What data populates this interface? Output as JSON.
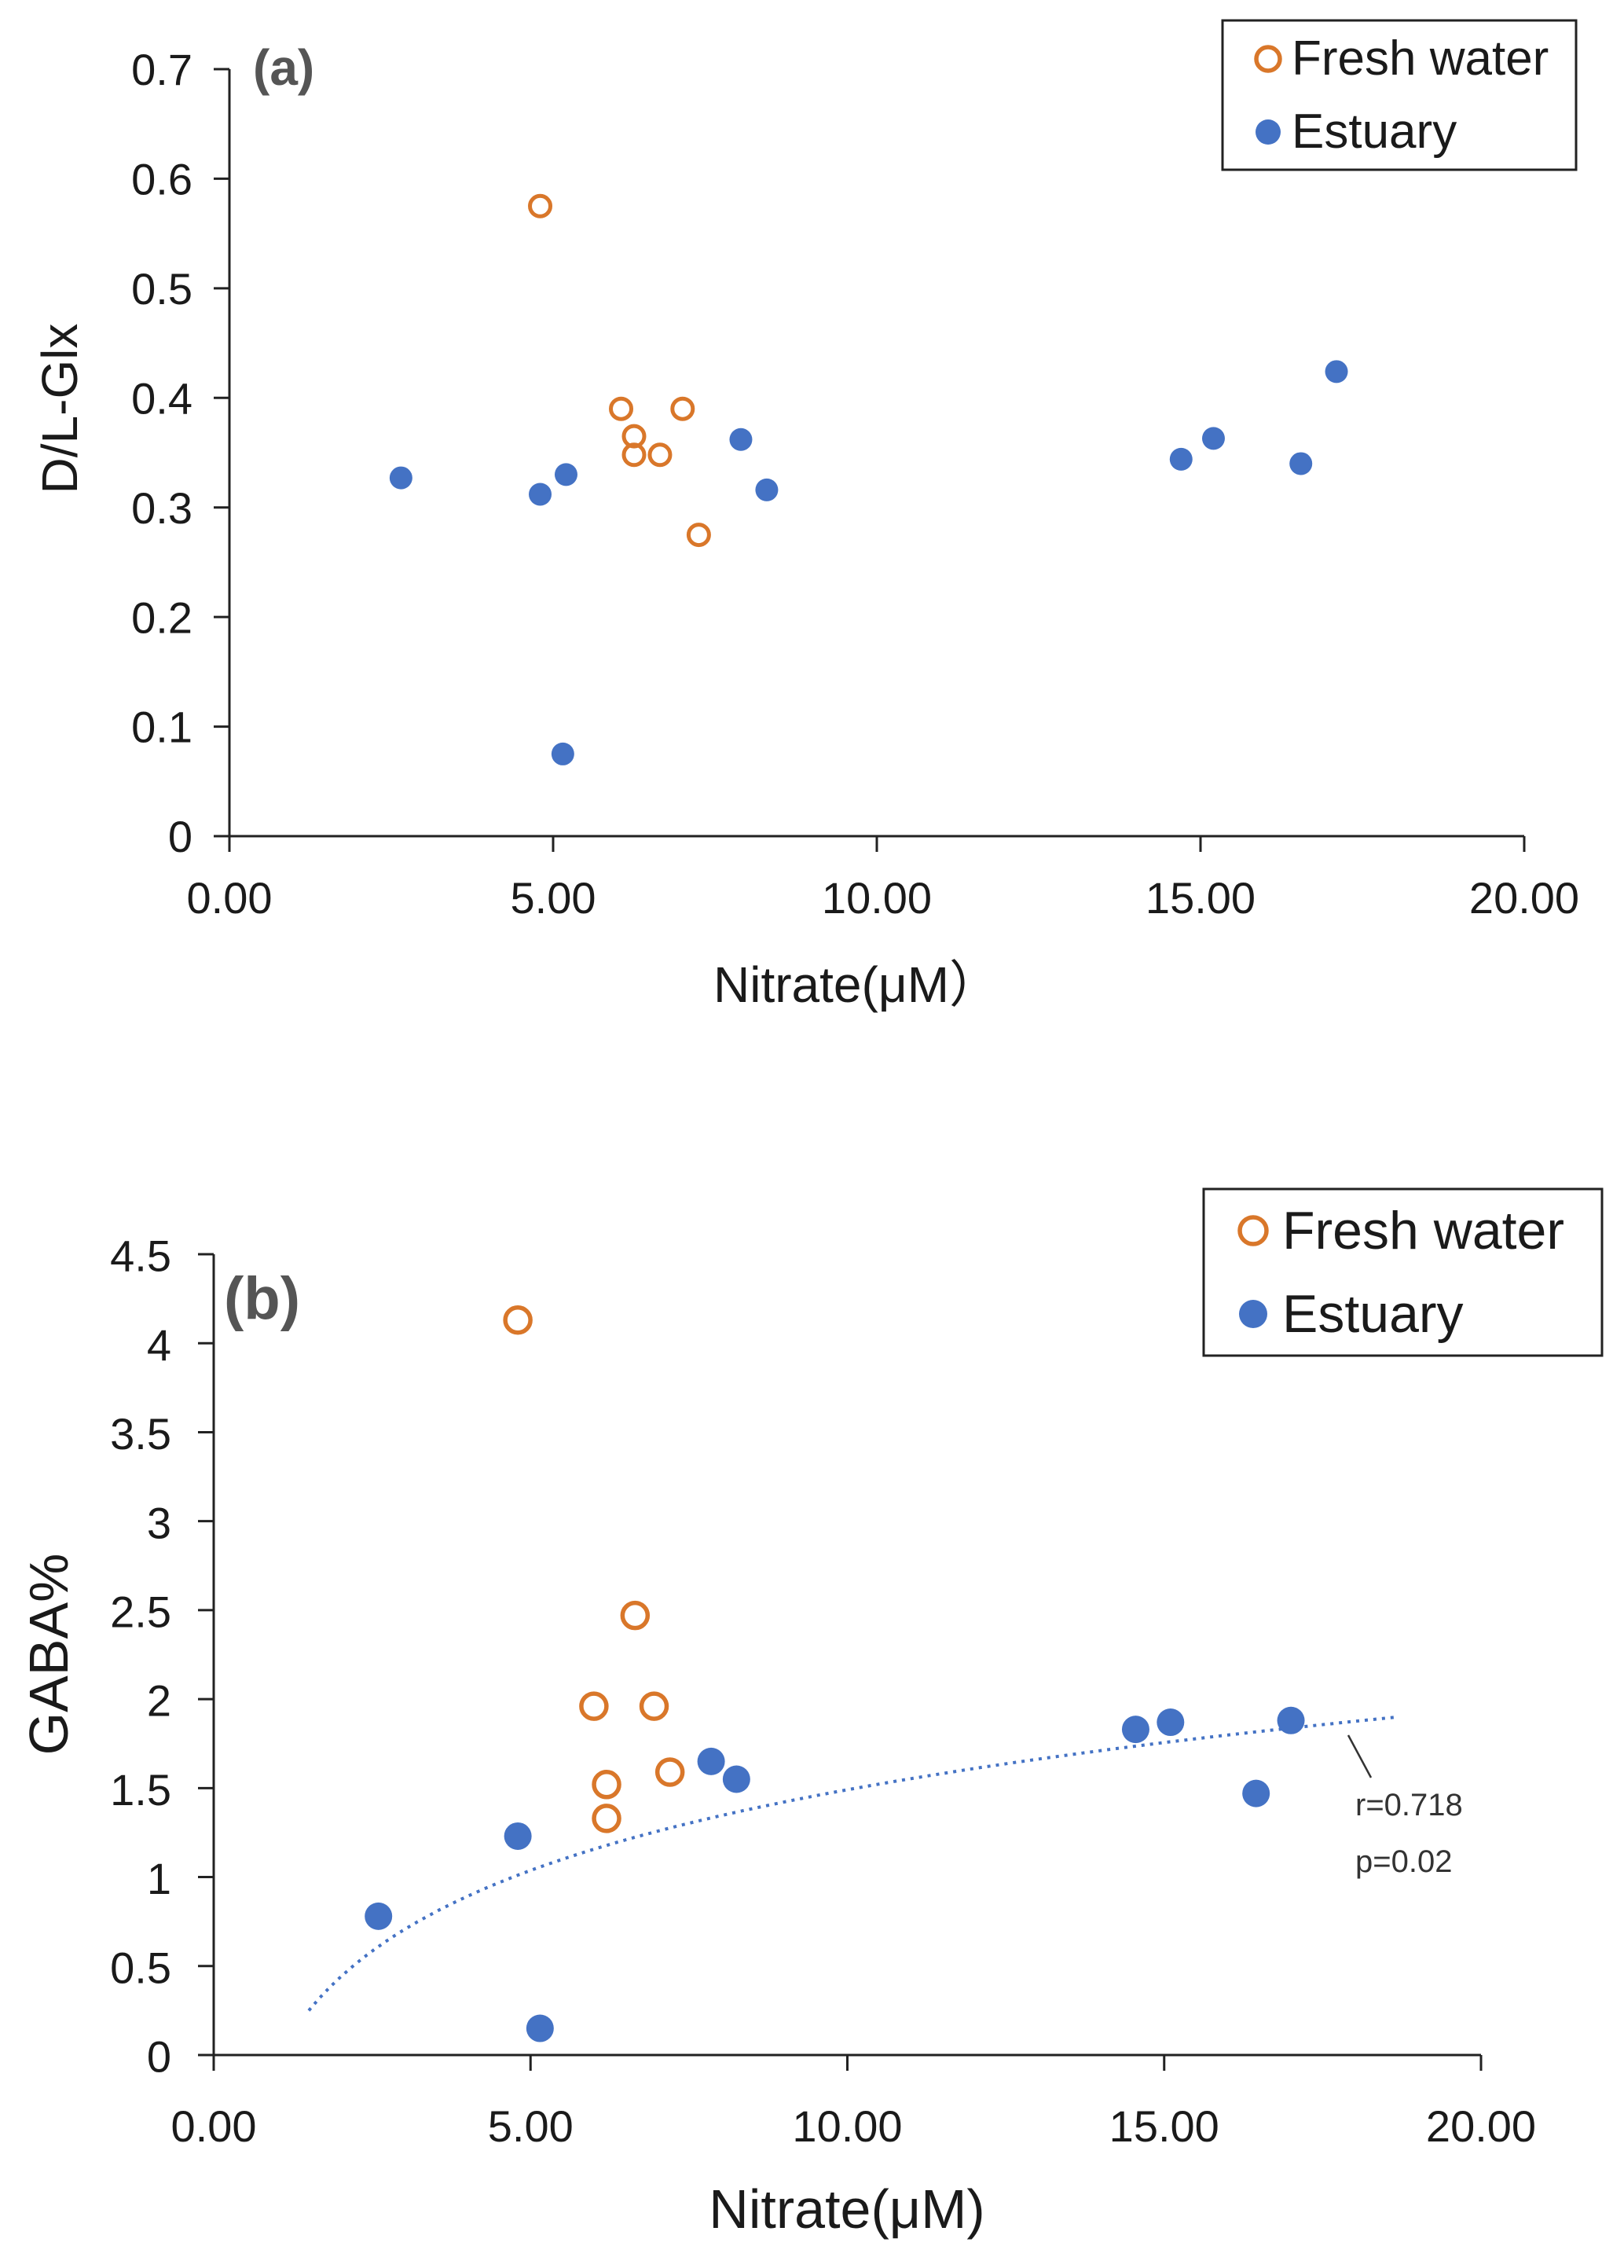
{
  "colors": {
    "fresh_water": "#D9772A",
    "estuary": "#4472C4",
    "axis": "#222222",
    "trendline": "#4472C4"
  },
  "chart_data": [
    {
      "type": "scatter",
      "panel_label": "(a)",
      "xlabel": "Nitrate(μM）",
      "ylabel": "D/L-Glx",
      "xlim": [
        0,
        20
      ],
      "ylim": [
        0,
        0.7
      ],
      "x_ticks": [
        0,
        5,
        10,
        15,
        20
      ],
      "x_tick_labels": [
        "0.00",
        "5.00",
        "10.00",
        "15.00",
        "20.00"
      ],
      "y_ticks": [
        0,
        0.1,
        0.2,
        0.3,
        0.4,
        0.5,
        0.6,
        0.7
      ],
      "y_tick_labels": [
        "0",
        "0.1",
        "0.2",
        "0.3",
        "0.4",
        "0.5",
        "0.6",
        "0.7"
      ],
      "legend_position": "top-right",
      "series": [
        {
          "name": "Fresh water",
          "marker": "open-circle",
          "x": [
            4.8,
            6.05,
            6.25,
            6.25,
            6.65,
            7.0,
            7.25
          ],
          "y": [
            0.575,
            0.39,
            0.365,
            0.348,
            0.348,
            0.39,
            0.275
          ]
        },
        {
          "name": "Estuary",
          "marker": "filled-circle",
          "x": [
            2.65,
            4.8,
            5.2,
            5.15,
            7.9,
            8.3,
            14.7,
            15.2,
            16.55,
            17.1
          ],
          "y": [
            0.327,
            0.312,
            0.33,
            0.075,
            0.362,
            0.316,
            0.344,
            0.363,
            0.34,
            0.424
          ]
        }
      ]
    },
    {
      "type": "scatter",
      "panel_label": "(b)",
      "xlabel": "Nitrate(μM)",
      "ylabel": "GABA%",
      "xlim": [
        0,
        20
      ],
      "ylim": [
        0,
        4.5
      ],
      "x_ticks": [
        0,
        5,
        10,
        15,
        20
      ],
      "x_tick_labels": [
        "0.00",
        "5.00",
        "10.00",
        "15.00",
        "20.00"
      ],
      "y_ticks": [
        0,
        0.5,
        1,
        1.5,
        2,
        2.5,
        3,
        3.5,
        4,
        4.5
      ],
      "y_tick_labels": [
        "0",
        "0.5",
        "1",
        "1.5",
        "2",
        "2.5",
        "3",
        "3.5",
        "4",
        "4.5"
      ],
      "legend_position": "top-right",
      "series": [
        {
          "name": "Fresh water",
          "marker": "open-circle",
          "x": [
            4.8,
            6.0,
            6.2,
            6.2,
            6.65,
            6.95,
            7.2
          ],
          "y": [
            4.13,
            1.96,
            1.52,
            1.33,
            2.47,
            1.96,
            1.59
          ]
        },
        {
          "name": "Estuary",
          "marker": "filled-circle",
          "x": [
            2.6,
            4.8,
            5.15,
            7.85,
            8.25,
            14.55,
            15.1,
            16.45,
            17.0
          ],
          "y": [
            0.78,
            1.23,
            0.15,
            1.65,
            1.55,
            1.83,
            1.87,
            1.47,
            1.88
          ]
        }
      ],
      "trendline": {
        "type": "logarithmic",
        "x_range": [
          1.5,
          18.7
        ],
        "y_start": 0.25,
        "y_end": 1.9,
        "annotation_r": "r=0.718",
        "annotation_p": "p=0.02"
      }
    }
  ]
}
